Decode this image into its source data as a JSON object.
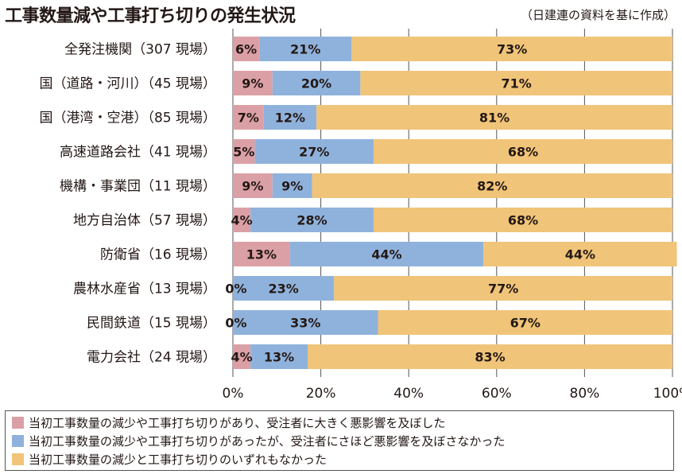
{
  "header": {
    "title": "工事数量減や工事打ち切りの発生状況",
    "source": "（日建連の資料を基に作成）"
  },
  "chart_data": {
    "type": "bar",
    "orientation": "horizontal",
    "stacked": true,
    "title": "工事数量減や工事打ち切りの発生状況",
    "xlabel": "",
    "ylabel": "",
    "xlim": [
      0,
      100
    ],
    "xticks": [
      "0%",
      "20%",
      "40%",
      "60%",
      "80%",
      "100%"
    ],
    "grid": true,
    "legend_position": "bottom",
    "categories": [
      "全発注機関（307 現場）",
      "国（道路・河川）（45 現場）",
      "国（港湾・空港）（85 現場）",
      "高速道路会社（41 現場）",
      "機構・事業団（11 現場）",
      "地方自治体（57 現場）",
      "防衛省（16 現場）",
      "農林水産省（13 現場）",
      "民間鉄道（15 現場）",
      "電力会社（24 現場）"
    ],
    "series": [
      {
        "name": "当初工事数量の減少や工事打ち切りがあり、受注者に大きく悪影響を及ぼした",
        "color": "#dba0a6",
        "values": [
          6,
          9,
          7,
          5,
          9,
          4,
          13,
          0,
          0,
          4
        ]
      },
      {
        "name": "当初工事数量の減少や工事打ち切りがあったが、受注者にさほど悪影響を及ぼさなかった",
        "color": "#8fb2dc",
        "values": [
          21,
          20,
          12,
          27,
          9,
          28,
          44,
          23,
          33,
          13
        ]
      },
      {
        "name": "当初工事数量の減少と工事打ち切りのいずれもなかった",
        "color": "#f0c479",
        "values": [
          73,
          71,
          81,
          68,
          82,
          68,
          44,
          77,
          67,
          83
        ]
      }
    ]
  }
}
